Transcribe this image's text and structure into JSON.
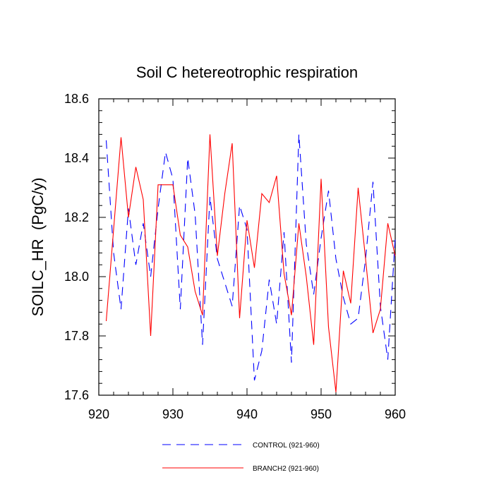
{
  "chart_data": {
    "type": "line",
    "title": "Soil C hetereotrophic respiration",
    "xlabel": "",
    "ylabel": "SOILC_HR  (PgC/y)",
    "xlim": [
      920,
      960
    ],
    "ylim": [
      17.6,
      18.6
    ],
    "xticks": [
      920,
      930,
      940,
      950,
      960
    ],
    "yticks": [
      "17.6",
      "17.8",
      "18.0",
      "18.2",
      "18.4",
      "18.6"
    ],
    "grid": false,
    "legend_position": "bottom",
    "x": [
      921,
      922,
      923,
      924,
      925,
      926,
      927,
      928,
      929,
      930,
      931,
      932,
      933,
      934,
      935,
      936,
      937,
      938,
      939,
      940,
      941,
      942,
      943,
      944,
      945,
      946,
      947,
      948,
      949,
      950,
      951,
      952,
      953,
      954,
      955,
      956,
      957,
      958,
      959,
      960
    ],
    "series": [
      {
        "name": "CONTROL (921-960)",
        "color": "#0000ff",
        "dash": "dashed",
        "values": [
          18.46,
          18.08,
          17.89,
          18.23,
          18.04,
          18.18,
          18.0,
          18.23,
          18.42,
          18.33,
          17.89,
          18.4,
          18.21,
          17.77,
          18.27,
          18.06,
          17.98,
          17.9,
          18.24,
          18.16,
          17.65,
          17.75,
          17.99,
          17.84,
          18.15,
          17.71,
          18.48,
          18.11,
          17.94,
          18.13,
          18.29,
          18.06,
          17.93,
          17.84,
          17.86,
          18.06,
          18.32,
          17.9,
          17.72,
          18.13
        ]
      },
      {
        "name": "BRANCH2 (921-960)",
        "color": "#ff0000",
        "dash": "solid",
        "values": [
          17.85,
          18.16,
          18.47,
          18.2,
          18.37,
          18.26,
          17.8,
          18.31,
          18.31,
          18.31,
          18.14,
          18.1,
          17.95,
          17.87,
          18.48,
          18.07,
          18.28,
          18.45,
          17.86,
          18.19,
          18.03,
          18.28,
          18.25,
          18.34,
          18.01,
          17.87,
          18.18,
          18.0,
          17.77,
          18.33,
          17.83,
          17.61,
          18.02,
          17.91,
          18.3,
          18.06,
          17.81,
          17.89,
          18.18,
          18.07
        ]
      }
    ]
  }
}
